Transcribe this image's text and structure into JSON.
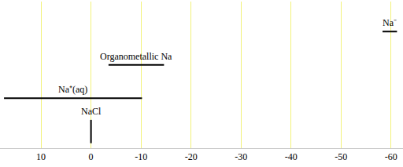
{
  "chart_data": {
    "type": "range",
    "categories": [
      "Na⁻",
      "Organometallic Na",
      "Na⁺(aq)",
      "NaCl"
    ],
    "low": [
      -58.3,
      -3.5,
      17.4,
      0
    ],
    "high": [
      -61.2,
      -14.6,
      -10.2,
      0
    ],
    "color": "#000000",
    "xlim": [
      18.2,
      -62.4
    ],
    "xticks": [
      10,
      0,
      -10,
      -20,
      -30,
      -40,
      -50,
      -60
    ],
    "grid": true,
    "tick_labels": "x"
  }
}
